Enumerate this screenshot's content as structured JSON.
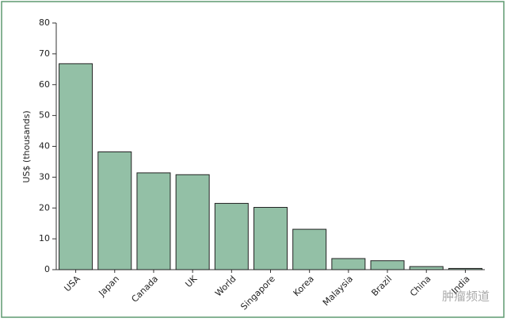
{
  "chart_data": {
    "type": "bar",
    "y_label": "US$ (thousands)",
    "categories": [
      "USA",
      "Japan",
      "Canada",
      "UK",
      "World",
      "Singapore",
      "Korea",
      "Malaysia",
      "Brazil",
      "China",
      "India"
    ],
    "values": [
      66.8,
      38.2,
      31.4,
      30.8,
      21.5,
      20.2,
      13.1,
      3.6,
      2.9,
      1.0,
      0.4
    ],
    "color": "#93c0a6",
    "ylim": [
      0,
      80
    ],
    "yticks": [
      0,
      10,
      20,
      30,
      40,
      50,
      60,
      70,
      80
    ],
    "grid": false,
    "watermark": "肿瘤频道"
  }
}
